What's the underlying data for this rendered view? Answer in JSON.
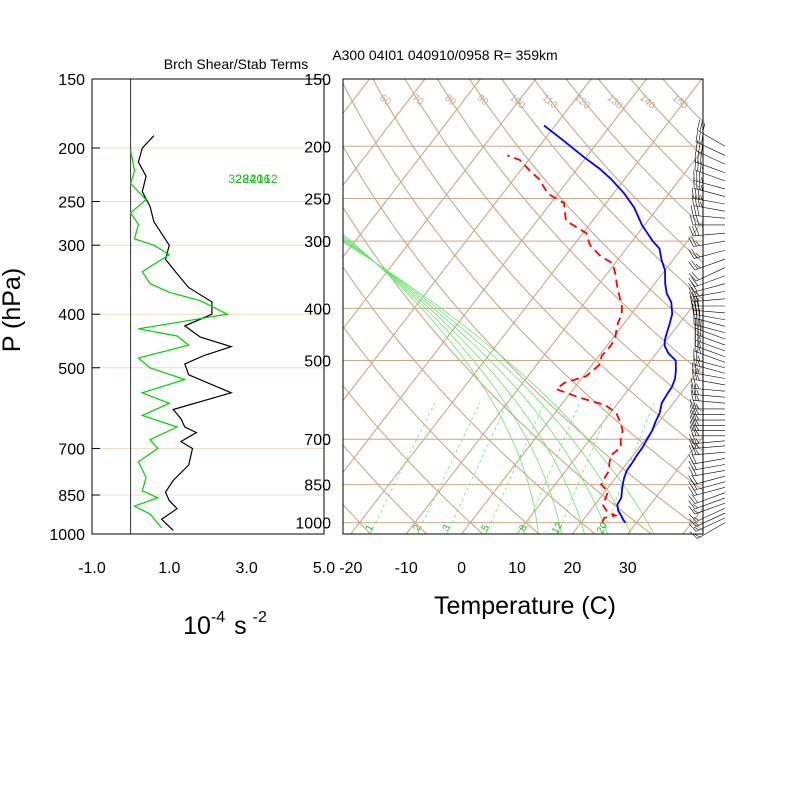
{
  "chart_data": [
    {
      "type": "line",
      "title": "Brch Shear/Stab Terms",
      "xlabel": "10",
      "xlabel_exp": "-4",
      "xlabel_unit": "s",
      "xlabel_unit_exp": "-2",
      "ylabel": "P (hPa)",
      "xlim": [
        -1.0,
        5.0
      ],
      "x_ticks": [
        "-1.0",
        "1.0",
        "3.0",
        "5.0"
      ],
      "x_tick_values": [
        -1.0,
        1.0,
        3.0,
        5.0
      ],
      "y_log_scale": true,
      "ylim": [
        1000,
        150
      ],
      "y_ticks": [
        150,
        200,
        250,
        300,
        400,
        500,
        700,
        850,
        1000
      ],
      "series": [
        {
          "color": "#000000",
          "points": [
            [
              0.6,
              190
            ],
            [
              0.3,
              200
            ],
            [
              0.2,
              212
            ],
            [
              0.4,
              225
            ],
            [
              0.3,
              240
            ],
            [
              0.5,
              255
            ],
            [
              0.6,
              272
            ],
            [
              1.0,
              300
            ],
            [
              0.9,
              318
            ],
            [
              1.2,
              338
            ],
            [
              1.5,
              358
            ],
            [
              2.1,
              380
            ],
            [
              2.1,
              400
            ],
            [
              1.4,
              420
            ],
            [
              1.8,
              440
            ],
            [
              2.6,
              458
            ],
            [
              1.9,
              475
            ],
            [
              1.4,
              492
            ],
            [
              1.5,
              515
            ],
            [
              2.6,
              555
            ],
            [
              1.1,
              595
            ],
            [
              1.3,
              618
            ],
            [
              1.4,
              640
            ],
            [
              1.7,
              655
            ],
            [
              1.3,
              680
            ],
            [
              1.6,
              700
            ],
            [
              1.5,
              750
            ],
            [
              1.1,
              800
            ],
            [
              0.9,
              840
            ],
            [
              1.0,
              870
            ],
            [
              1.2,
              900
            ],
            [
              0.8,
              940
            ],
            [
              1.1,
              985
            ]
          ]
        },
        {
          "color": "#00d000",
          "points": [
            [
              0.0,
              202
            ],
            [
              0.1,
              220
            ],
            [
              0.0,
              232
            ],
            [
              0.4,
              248
            ],
            [
              0.0,
              262
            ],
            [
              0.2,
              275
            ],
            [
              0.1,
              292
            ],
            [
              0.6,
              300
            ],
            [
              1.0,
              312
            ],
            [
              0.3,
              335
            ],
            [
              0.5,
              352
            ],
            [
              1.0,
              365
            ],
            [
              1.8,
              378
            ],
            [
              2.5,
              400
            ],
            [
              0.2,
              425
            ],
            [
              1.2,
              438
            ],
            [
              1.5,
              455
            ],
            [
              0.2,
              480
            ],
            [
              0.5,
              500
            ],
            [
              1.4,
              525
            ],
            [
              0.3,
              555
            ],
            [
              1.0,
              580
            ],
            [
              0.3,
              610
            ],
            [
              1.2,
              640
            ],
            [
              0.5,
              675
            ],
            [
              0.7,
              700
            ],
            [
              0.2,
              740
            ],
            [
              0.4,
              790
            ],
            [
              0.3,
              835
            ],
            [
              0.7,
              860
            ],
            [
              0.1,
              890
            ],
            [
              0.5,
              920
            ],
            [
              0.8,
              975
            ]
          ]
        }
      ]
    },
    {
      "type": "line",
      "title": "A300 04I01 040910/0958 R= 359km",
      "xlabel": "Temperature (C)",
      "xlim": [
        -23,
        42
      ],
      "x_ticks": [
        -20,
        -10,
        0,
        10,
        20,
        30
      ],
      "y_log_scale": true,
      "ylim": [
        1050,
        150
      ],
      "y_ticks": [
        150,
        200,
        250,
        300,
        400,
        500,
        700,
        850,
        1000
      ],
      "skew_per_decade_C": 75,
      "isotherms": [
        -100,
        -90,
        -80,
        -70,
        -60,
        -50,
        -40,
        -30,
        -20,
        -10,
        0,
        10,
        20,
        30,
        40
      ],
      "dry_adiabats_C_at_1000": [
        -30,
        -20,
        -10,
        0,
        10,
        20,
        30,
        40,
        50,
        60,
        70,
        80,
        90,
        100,
        110,
        120,
        130,
        140,
        150
      ],
      "dry_adiabat_labels": [
        "50",
        "60",
        "70",
        "80",
        "90",
        "100",
        "110",
        "120",
        "130",
        "140",
        "150"
      ],
      "moist_adiabats_C_at_1000": [
        12,
        16,
        20,
        24,
        28,
        32
      ],
      "moist_adiabat_labels": [
        "12",
        "16",
        "20",
        "24",
        "28",
        "32"
      ],
      "mixing_ratios_gkg": [
        1,
        2,
        3,
        5,
        8,
        12,
        20
      ],
      "mixing_ratio_labels": [
        "1",
        "2",
        "3",
        "5",
        "8",
        "12",
        "20"
      ],
      "series": [
        {
          "color": "#0000ff",
          "points": [
            [
              28.0,
              1000
            ],
            [
              27.3,
              990
            ],
            [
              26.5,
              975
            ],
            [
              25.0,
              950
            ],
            [
              24.0,
              925
            ],
            [
              23.8,
              900
            ],
            [
              23.0,
              875
            ],
            [
              22.2,
              850
            ],
            [
              21.5,
              825
            ],
            [
              21.0,
              800
            ],
            [
              20.9,
              775
            ],
            [
              20.7,
              750
            ],
            [
              20.6,
              725
            ],
            [
              20.3,
              700
            ],
            [
              20.0,
              675
            ],
            [
              19.4,
              650
            ],
            [
              18.9,
              625
            ],
            [
              17.9,
              600
            ],
            [
              17.6,
              575
            ],
            [
              17.5,
              560
            ],
            [
              16.9,
              540
            ],
            [
              15.8,
              520
            ],
            [
              14.5,
              500
            ],
            [
              12.2,
              485
            ],
            [
              10.5,
              470
            ],
            [
              9.8,
              460
            ],
            [
              9.3,
              450
            ],
            [
              8.4,
              430
            ],
            [
              7.4,
              410
            ],
            [
              5.6,
              390
            ],
            [
              3.5,
              375
            ],
            [
              1.9,
              360
            ],
            [
              0.0,
              340
            ],
            [
              -2.1,
              325
            ],
            [
              -4.0,
              310
            ],
            [
              -6.3,
              300
            ],
            [
              -10.5,
              280
            ],
            [
              -14.3,
              260
            ],
            [
              -18.0,
              245
            ],
            [
              -22.5,
              230
            ],
            [
              -26.0,
              220
            ],
            [
              -30.2,
              210
            ],
            [
              -36.5,
              195
            ],
            [
              -42.0,
              183
            ]
          ]
        },
        {
          "color": "#ff0000",
          "points": [
            [
              23.8,
              1000
            ],
            [
              23.5,
              980
            ],
            [
              25.2,
              970
            ],
            [
              23.2,
              955
            ],
            [
              21.3,
              925
            ],
            [
              21.0,
              900
            ],
            [
              20.5,
              875
            ],
            [
              18.3,
              850
            ],
            [
              18.0,
              825
            ],
            [
              17.8,
              800
            ],
            [
              16.8,
              775
            ],
            [
              16.0,
              750
            ],
            [
              16.7,
              725
            ],
            [
              15.5,
              700
            ],
            [
              14.7,
              675
            ],
            [
              13.0,
              650
            ],
            [
              11.0,
              625
            ],
            [
              8.0,
              605
            ],
            [
              2.0,
              585
            ],
            [
              -3.1,
              565
            ],
            [
              -2.5,
              550
            ],
            [
              0.5,
              535
            ],
            [
              1.3,
              510
            ],
            [
              0.5,
              490
            ],
            [
              0.7,
              470
            ],
            [
              0.5,
              455
            ],
            [
              -0.4,
              440
            ],
            [
              -1.2,
              425
            ],
            [
              -1.7,
              410
            ],
            [
              -2.9,
              395
            ],
            [
              -4.6,
              380
            ],
            [
              -6.3,
              365
            ],
            [
              -8.5,
              345
            ],
            [
              -10.4,
              330
            ],
            [
              -13.6,
              320
            ],
            [
              -17.1,
              305
            ],
            [
              -19.4,
              290
            ],
            [
              -24.8,
              275
            ],
            [
              -27.6,
              255
            ],
            [
              -31.8,
              245
            ],
            [
              -35.5,
              230
            ],
            [
              -38.3,
              222
            ],
            [
              -41.6,
              212
            ],
            [
              -44.5,
              208
            ]
          ]
        }
      ]
    }
  ],
  "wind_barbs": {
    "color": "#000000",
    "levels_hPa": [
      200,
      208,
      216,
      224,
      232,
      240,
      248,
      256,
      264,
      272,
      280,
      290,
      300,
      312,
      324,
      336,
      348,
      360,
      372,
      384,
      396,
      408,
      420,
      432,
      444,
      456,
      468,
      480,
      492,
      504,
      516,
      528,
      540,
      555,
      570,
      585,
      600,
      615,
      630,
      645,
      660,
      675,
      690,
      705,
      720,
      740,
      760,
      780,
      800,
      820,
      840,
      860,
      880,
      900,
      920,
      940,
      960,
      980,
      1000
    ],
    "direction_deg": [
      300,
      295,
      295,
      290,
      290,
      285,
      285,
      280,
      280,
      275,
      270,
      265,
      260,
      255,
      250,
      245,
      250,
      255,
      260,
      265,
      270,
      275,
      280,
      285,
      285,
      290,
      290,
      290,
      290,
      290,
      285,
      285,
      280,
      280,
      275,
      275,
      275,
      270,
      270,
      270,
      270,
      270,
      270,
      265,
      265,
      265,
      260,
      260,
      260,
      255,
      255,
      255,
      250,
      250,
      250,
      245,
      245,
      245,
      240
    ],
    "speed_kt": [
      30,
      30,
      30,
      30,
      35,
      35,
      35,
      35,
      35,
      30,
      30,
      30,
      25,
      25,
      25,
      20,
      20,
      20,
      25,
      25,
      30,
      30,
      30,
      30,
      30,
      30,
      30,
      25,
      25,
      25,
      25,
      25,
      25,
      25,
      25,
      25,
      25,
      25,
      25,
      25,
      25,
      25,
      25,
      25,
      25,
      25,
      20,
      20,
      20,
      20,
      20,
      20,
      20,
      15,
      15,
      15,
      15,
      15,
      15
    ]
  }
}
